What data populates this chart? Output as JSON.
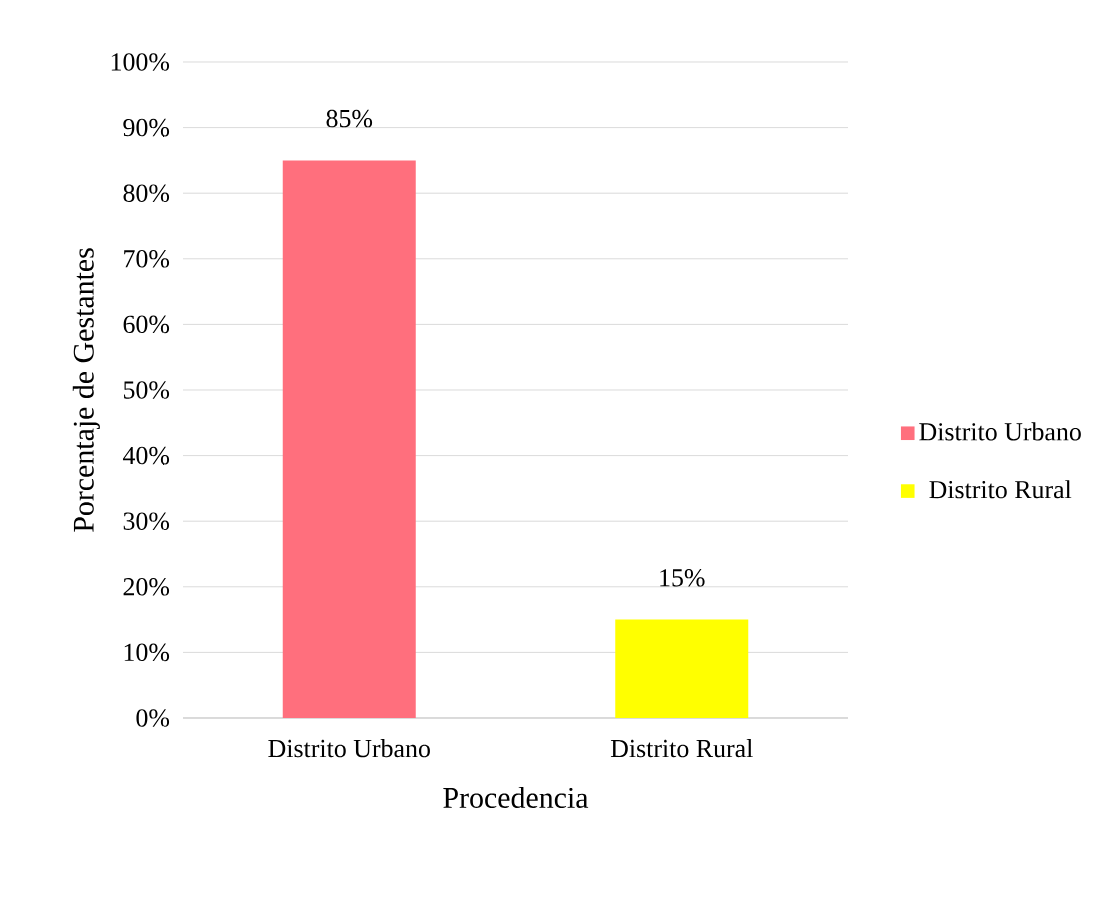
{
  "chart_data": {
    "type": "bar",
    "xlabel": "Procedencia",
    "ylabel": "Porcentaje de Gestantes",
    "categories": [
      "Distrito Urbano",
      "Distrito Rural"
    ],
    "series": [
      {
        "name": "Distrito Urbano",
        "color": "#ff6f7d",
        "values": [
          85,
          null
        ],
        "value_labels": [
          "85%",
          null
        ]
      },
      {
        "name": "Distrito Rural",
        "color": "#ffff00",
        "values": [
          null,
          15
        ],
        "value_labels": [
          null,
          "15%"
        ]
      }
    ],
    "ylim": [
      0,
      100
    ],
    "yticks": [
      {
        "value": 0,
        "label": "0%"
      },
      {
        "value": 10,
        "label": "10%"
      },
      {
        "value": 20,
        "label": "20%"
      },
      {
        "value": 30,
        "label": "30%"
      },
      {
        "value": 40,
        "label": "40%"
      },
      {
        "value": 50,
        "label": "50%"
      },
      {
        "value": 60,
        "label": "60%"
      },
      {
        "value": 70,
        "label": "70%"
      },
      {
        "value": 80,
        "label": "80%"
      },
      {
        "value": 90,
        "label": "90%"
      },
      {
        "value": 100,
        "label": "100%"
      }
    ],
    "grid": "y",
    "legend": "right"
  }
}
